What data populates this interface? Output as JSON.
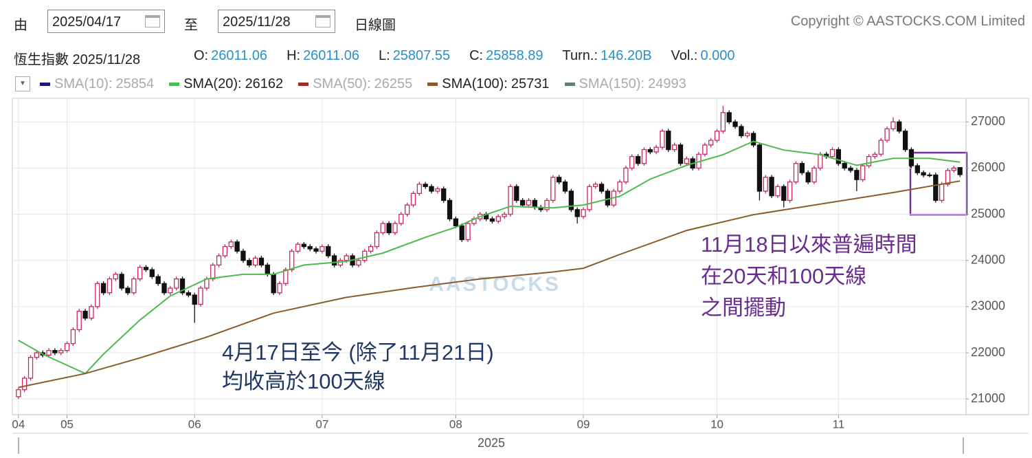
{
  "header": {
    "from_label": "由",
    "from_date": "2025/04/17",
    "to_label": "至",
    "to_date": "2025/11/28",
    "period": "日線圖",
    "copyright": "Copyright © AASTOCKS.COM Limited",
    "instrument": "恆生指數 2025/11/28",
    "quote": [
      {
        "label": "O:",
        "value": 26011.06
      },
      {
        "label": "H:",
        "value": 26011.06
      },
      {
        "label": "L:",
        "value": 25807.55
      },
      {
        "label": "C:",
        "value": 25858.89
      },
      {
        "label": "Turn.:",
        "value": "146.20B"
      },
      {
        "label": "Vol.:",
        "value": "0.000"
      }
    ]
  },
  "chart_data": {
    "type": "candlestick",
    "watermark": "AASTOCKS",
    "x_label": "2025",
    "xlim": [
      -1,
      156
    ],
    "xticks": [
      {
        "value": 0,
        "label": "04"
      },
      {
        "value": 8,
        "label": "05"
      },
      {
        "value": 29,
        "label": "06"
      },
      {
        "value": 50,
        "label": "07"
      },
      {
        "value": 72,
        "label": "08"
      },
      {
        "value": 93,
        "label": "09"
      },
      {
        "value": 115,
        "label": "10"
      },
      {
        "value": 135,
        "label": "11"
      }
    ],
    "ylim": [
      20660,
      27510
    ],
    "yticks": [
      21000,
      22000,
      23000,
      24000,
      25000,
      26000,
      27000
    ],
    "grid": true,
    "up_color": "#c8285c",
    "down_color": "#111111",
    "open": [
      21050,
      21200,
      21450,
      21900,
      22000,
      21950,
      22050,
      22000,
      22050,
      22200,
      22500,
      22900,
      22750,
      23000,
      23500,
      23300,
      23600,
      23700,
      23400,
      23300,
      23600,
      23850,
      23800,
      23650,
      23500,
      23300,
      23400,
      23600,
      23300,
      23250,
      23050,
      23400,
      23600,
      23900,
      24100,
      24300,
      24400,
      24200,
      24000,
      23900,
      24050,
      23900,
      23700,
      23300,
      23500,
      23800,
      24200,
      24350,
      24300,
      24250,
      24200,
      24300,
      24100,
      23900,
      24000,
      24100,
      23900,
      24000,
      24200,
      24300,
      24600,
      24800,
      24600,
      24800,
      25000,
      25200,
      25450,
      25650,
      25600,
      25500,
      25550,
      25300,
      24900,
      24750,
      24450,
      24800,
      24900,
      25000,
      24900,
      24850,
      24950,
      25000,
      25600,
      25300,
      25200,
      25300,
      25150,
      25100,
      25300,
      25800,
      25700,
      25500,
      25100,
      24950,
      25100,
      25600,
      25650,
      25500,
      25200,
      25500,
      25700,
      26000,
      26250,
      26100,
      26400,
      26350,
      26450,
      26800,
      26400,
      26500,
      26100,
      26200,
      26000,
      26300,
      26500,
      26600,
      26800,
      27200,
      27000,
      26900,
      26700,
      26750,
      26500,
      25500,
      25800,
      25400,
      25600,
      25300,
      25700,
      26100,
      25900,
      25700,
      26000,
      26300,
      26250,
      26400,
      26100,
      26000,
      25950,
      25750,
      26050,
      26250,
      26300,
      26600,
      26850,
      27000,
      26800,
      26400,
      26050,
      25900,
      25850,
      25850,
      25300,
      25650,
      25950,
      26011.06
    ],
    "high": [
      21250,
      21500,
      21950,
      22050,
      22050,
      22100,
      22100,
      22100,
      22250,
      22550,
      22950,
      22950,
      23050,
      23550,
      23550,
      23650,
      23750,
      23750,
      23450,
      23650,
      23900,
      23900,
      23850,
      23700,
      23550,
      23450,
      23650,
      23650,
      23350,
      23300,
      23450,
      23650,
      23950,
      24150,
      24350,
      24450,
      24450,
      24250,
      24050,
      24100,
      24100,
      23950,
      23750,
      23550,
      23850,
      24250,
      24400,
      24400,
      24350,
      24300,
      24350,
      24350,
      24150,
      24050,
      24150,
      24150,
      24050,
      24250,
      24350,
      24650,
      24850,
      24850,
      24850,
      25050,
      25250,
      25500,
      25700,
      25700,
      25650,
      25600,
      25600,
      25350,
      24950,
      24800,
      24850,
      24950,
      25050,
      25050,
      24950,
      25000,
      25050,
      25650,
      25650,
      25350,
      25350,
      25350,
      25200,
      25350,
      25850,
      25850,
      25750,
      25550,
      25150,
      25150,
      25650,
      25700,
      25700,
      25550,
      25550,
      25750,
      26050,
      26300,
      26300,
      26450,
      26450,
      26500,
      26850,
      26850,
      26550,
      26550,
      26250,
      26250,
      26350,
      26550,
      26650,
      26850,
      27350,
      27250,
      27050,
      26950,
      26800,
      26800,
      26550,
      25850,
      25850,
      25650,
      25650,
      25750,
      26150,
      26150,
      25950,
      26050,
      26350,
      26350,
      26450,
      26450,
      26150,
      26050,
      26000,
      26100,
      26300,
      26350,
      26650,
      26900,
      27100,
      27050,
      26850,
      26450,
      26100,
      25950,
      25900,
      25900,
      25700,
      26000,
      26050,
      26011.06
    ],
    "low": [
      21000,
      21150,
      21400,
      21850,
      21900,
      21900,
      21950,
      21950,
      22000,
      22150,
      22450,
      22700,
      22700,
      22950,
      23250,
      23250,
      23550,
      23350,
      23250,
      23250,
      23550,
      23750,
      23600,
      23450,
      23250,
      23250,
      23350,
      23250,
      23200,
      22650,
      23000,
      23350,
      23550,
      23850,
      24050,
      24250,
      24150,
      23950,
      23850,
      23850,
      23850,
      23650,
      23250,
      23250,
      23450,
      23750,
      24150,
      24250,
      24200,
      24150,
      24150,
      24050,
      23850,
      23850,
      23950,
      23850,
      23850,
      23950,
      24150,
      24250,
      24550,
      24550,
      24550,
      24750,
      24950,
      25150,
      25400,
      25550,
      25450,
      25450,
      25250,
      24850,
      24700,
      24400,
      24400,
      24750,
      24850,
      24850,
      24800,
      24800,
      24900,
      24950,
      25250,
      25150,
      25150,
      25100,
      25050,
      25050,
      25250,
      25650,
      25450,
      25050,
      24800,
      24900,
      25050,
      25550,
      25450,
      25150,
      25150,
      25450,
      25650,
      25950,
      26050,
      26050,
      26300,
      26300,
      26400,
      26350,
      26350,
      26050,
      26050,
      25950,
      25950,
      26250,
      26450,
      26550,
      26750,
      26950,
      26850,
      26650,
      26650,
      26450,
      25300,
      25450,
      25350,
      25350,
      25150,
      25250,
      25650,
      25850,
      25650,
      25650,
      25950,
      26200,
      26200,
      26050,
      25950,
      25900,
      25500,
      25700,
      26000,
      26200,
      26250,
      26550,
      26800,
      26750,
      26350,
      26000,
      25850,
      25800,
      25800,
      25250,
      25250,
      25600,
      25900,
      25807.55
    ],
    "close": [
      21200,
      21450,
      21900,
      22000,
      21950,
      22050,
      22000,
      22050,
      22200,
      22500,
      22900,
      22750,
      23000,
      23500,
      23300,
      23600,
      23700,
      23400,
      23300,
      23600,
      23850,
      23800,
      23650,
      23500,
      23300,
      23400,
      23600,
      23300,
      23250,
      23050,
      23400,
      23600,
      23900,
      24100,
      24300,
      24400,
      24200,
      24000,
      23900,
      24050,
      23900,
      23700,
      23300,
      23500,
      23800,
      24200,
      24350,
      24300,
      24250,
      24200,
      24300,
      24100,
      23900,
      24000,
      24100,
      23900,
      24000,
      24200,
      24300,
      24600,
      24800,
      24600,
      24800,
      25000,
      25200,
      25450,
      25650,
      25600,
      25500,
      25550,
      25300,
      24900,
      24750,
      24450,
      24800,
      24900,
      25000,
      24900,
      24850,
      24950,
      25000,
      25600,
      25300,
      25200,
      25300,
      25150,
      25100,
      25300,
      25800,
      25700,
      25500,
      25100,
      24950,
      25100,
      25600,
      25650,
      25500,
      25200,
      25500,
      25700,
      26000,
      26250,
      26100,
      26400,
      26350,
      26450,
      26800,
      26400,
      26500,
      26100,
      26200,
      26000,
      26300,
      26500,
      26600,
      26800,
      27200,
      27000,
      26900,
      26700,
      26750,
      26500,
      25500,
      25800,
      25400,
      25600,
      25300,
      25700,
      26100,
      25900,
      25700,
      26000,
      26300,
      26250,
      26400,
      26100,
      26000,
      25950,
      25750,
      26050,
      26250,
      26300,
      26600,
      26850,
      27000,
      26800,
      26400,
      26050,
      25900,
      25850,
      25850,
      25300,
      25650,
      25950,
      26000,
      25858.89
    ],
    "indicators": [
      {
        "label": "SMA(10):",
        "value": 25854,
        "color": "#1c1c6e",
        "visible": false
      },
      {
        "label": "SMA(20):",
        "value": 26162,
        "color": "#4cbb4c",
        "visible": true,
        "x": [
          0,
          4,
          11,
          14,
          20,
          25,
          31,
          37,
          42,
          47,
          54,
          60,
          67,
          72,
          76,
          81,
          88,
          93,
          99,
          104,
          110,
          116,
          121,
          126,
          132,
          138,
          144,
          150,
          155
        ],
        "values": [
          22270,
          21970,
          21550,
          21970,
          22710,
          23230,
          23600,
          23700,
          23700,
          23900,
          23980,
          24160,
          24500,
          24720,
          24950,
          25170,
          25140,
          25200,
          25390,
          25760,
          26060,
          26290,
          26580,
          26390,
          26290,
          26060,
          26210,
          26210,
          26130
        ]
      },
      {
        "label": "SMA(50):",
        "value": 26255,
        "color": "#a52a2a",
        "visible": false
      },
      {
        "label": "SMA(100):",
        "value": 25731,
        "color": "#8b5a2b",
        "visible": true,
        "x": [
          0,
          11,
          20,
          31,
          42,
          54,
          65,
          76,
          88,
          93,
          99,
          110,
          121,
          133,
          144,
          155
        ],
        "values": [
          21250,
          21550,
          21890,
          22340,
          22860,
          23200,
          23410,
          23600,
          23750,
          23830,
          24130,
          24650,
          24990,
          25240,
          25470,
          25720
        ]
      },
      {
        "label": "SMA(150):",
        "value": 24993,
        "color": "#5f7f7f",
        "visible": false
      }
    ],
    "annotations": [
      {
        "lines": [
          "11月18日以來普遍時間",
          "在20天和100天線",
          "之間擺動"
        ],
        "color": "#6a2c91"
      },
      {
        "lines": [
          "4月17日至今 (除了11月21日)",
          "均收高於100天線"
        ],
        "color": "#1f3864"
      }
    ]
  }
}
